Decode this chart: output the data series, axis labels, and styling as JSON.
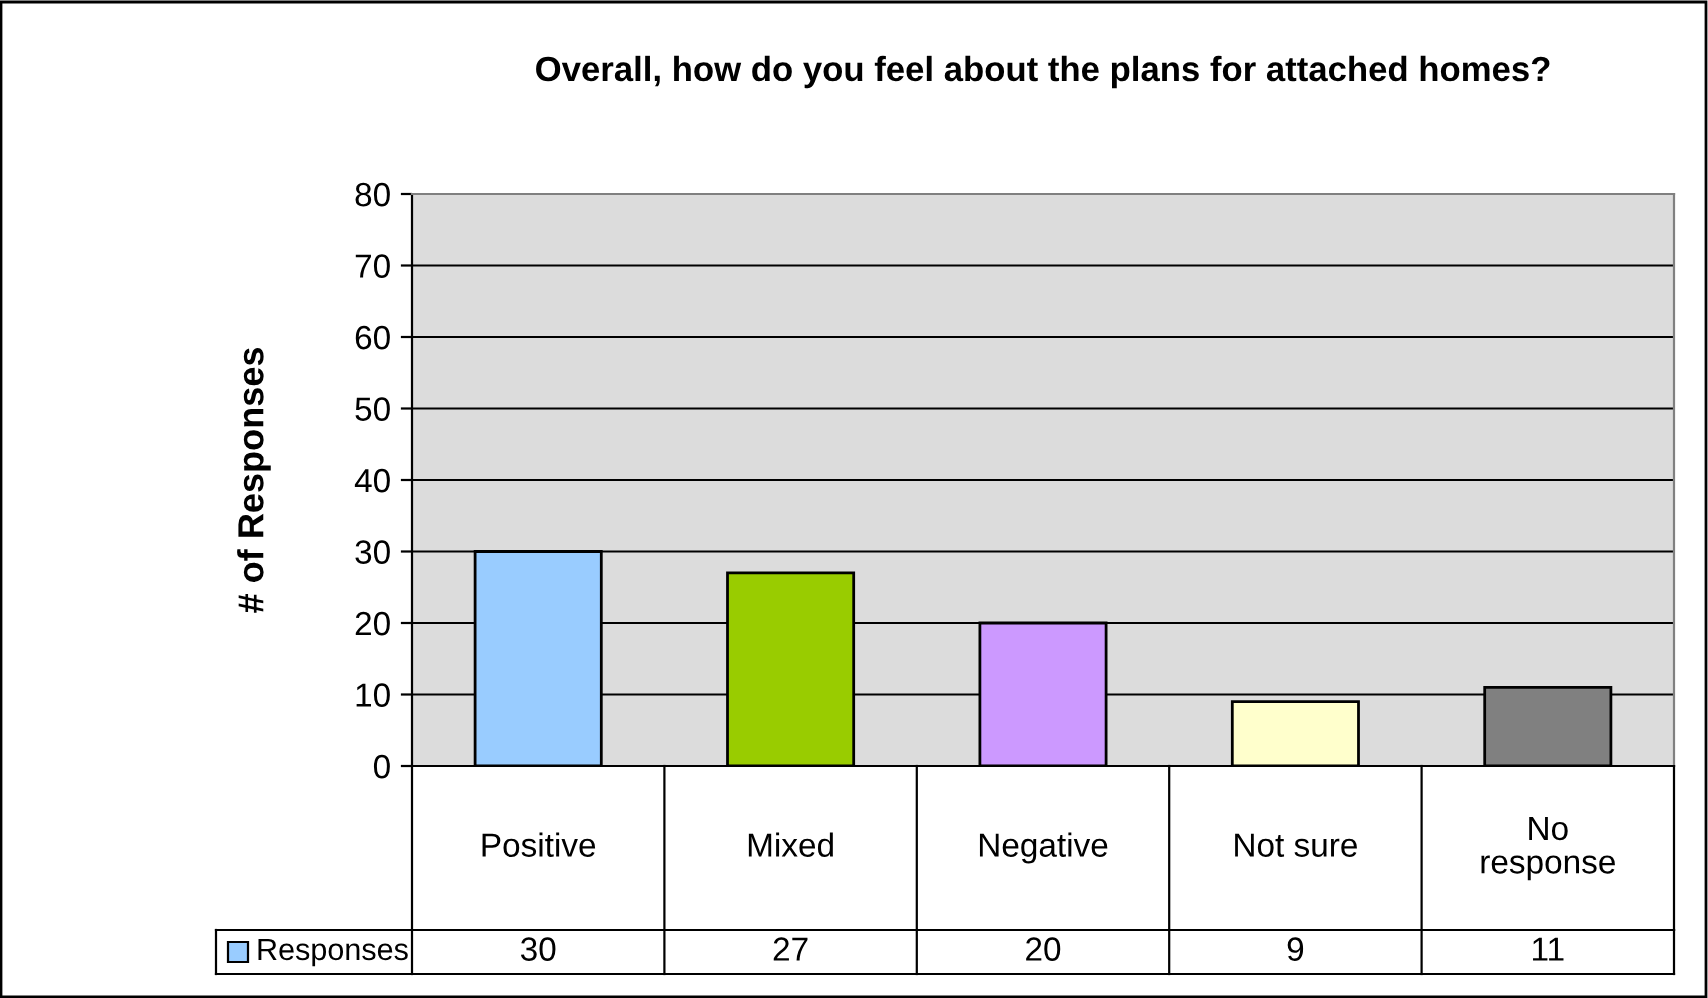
{
  "chart_data": {
    "type": "bar",
    "title": "Overall, how do you feel about the plans for attached homes?",
    "ylabel": "# of Responses",
    "categories": [
      "Positive",
      "Mixed",
      "Negative",
      "Not sure",
      "No response"
    ],
    "series": [
      {
        "name": "Responses",
        "color": "#99ccff",
        "colors": [
          "#99ccff",
          "#99cc00",
          "#cc99ff",
          "#ffffcc",
          "#808080"
        ],
        "values": [
          30,
          27,
          20,
          9,
          11
        ]
      }
    ],
    "ylim": [
      0,
      80
    ],
    "yticks": [
      0,
      10,
      20,
      30,
      40,
      50,
      60,
      70,
      80
    ],
    "grid": "y",
    "legend": "bottom",
    "data_labels": true
  }
}
